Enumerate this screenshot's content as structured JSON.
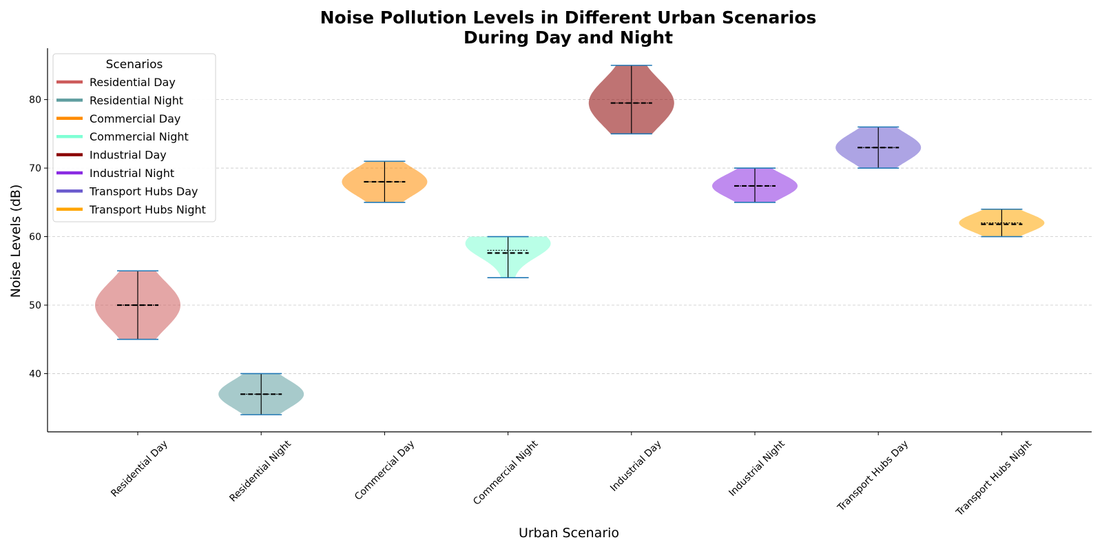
{
  "chart_data": {
    "type": "violin",
    "title_lines": [
      "Noise Pollution Levels in Different Urban Scenarios",
      "During Day and Night"
    ],
    "xlabel": "Urban Scenario",
    "ylabel": "Noise Levels (dB)",
    "ylim": [
      31.5,
      87.5
    ],
    "yticks": [
      40,
      50,
      60,
      70,
      80
    ],
    "grid": "horizontal dashed",
    "legend": {
      "title": "Scenarios",
      "placement": "top-left"
    },
    "categories": [
      "Residential Day",
      "Residential Night",
      "Commercial Day",
      "Commercial Night",
      "Industrial Day",
      "Industrial Night",
      "Transport Hubs Day",
      "Transport Hubs Night"
    ],
    "series": [
      {
        "name": "Residential Day",
        "color": "#cd5c5c",
        "min": 45,
        "max": 55,
        "mean": 50,
        "median": 50,
        "widest": 50
      },
      {
        "name": "Residential Night",
        "color": "#5f9ea0",
        "min": 34,
        "max": 40,
        "mean": 37,
        "median": 37,
        "widest": 37
      },
      {
        "name": "Commercial Day",
        "color": "#ff8c00",
        "min": 65,
        "max": 71,
        "mean": 68,
        "median": 68,
        "widest": 68
      },
      {
        "name": "Commercial Night",
        "color": "#7fffd4",
        "min": 54,
        "max": 60,
        "mean": 57.6,
        "median": 58,
        "widest": 59
      },
      {
        "name": "Industrial Day",
        "color": "#8b0000",
        "min": 75,
        "max": 85,
        "mean": 79.5,
        "median": 79.5,
        "widest": 79.5
      },
      {
        "name": "Industrial Night",
        "color": "#8a2be2",
        "min": 65,
        "max": 70,
        "mean": 67.4,
        "median": 67.4,
        "widest": 67.4
      },
      {
        "name": "Transport Hubs Day",
        "color": "#6a5acd",
        "min": 70,
        "max": 76,
        "mean": 73,
        "median": 73,
        "widest": 73
      },
      {
        "name": "Transport Hubs Night",
        "color": "#ffa500",
        "min": 60,
        "max": 64,
        "mean": 61.8,
        "median": 62,
        "widest": 62
      }
    ]
  }
}
